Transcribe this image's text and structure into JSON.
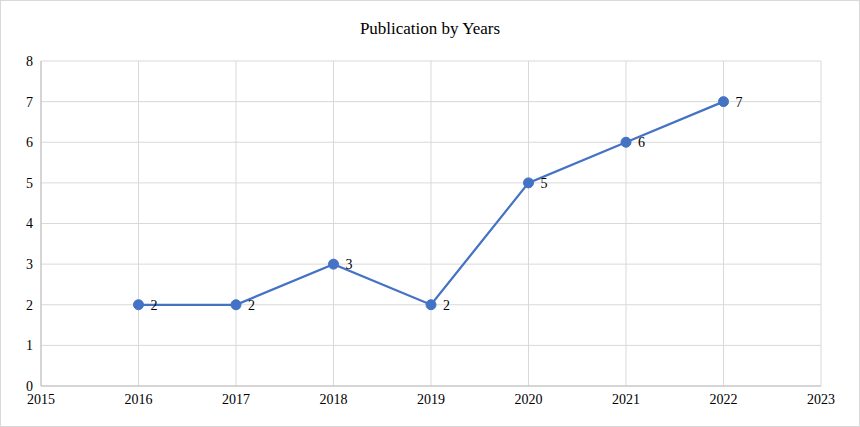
{
  "chart_data": {
    "type": "line",
    "title": "Publication by Years",
    "x": [
      2016,
      2017,
      2018,
      2019,
      2020,
      2021,
      2022
    ],
    "values": [
      2,
      2,
      3,
      2,
      5,
      6,
      7
    ],
    "color": "#4472c4",
    "marker": "circle",
    "xlim": [
      2015,
      2023
    ],
    "xticks": [
      2015,
      2016,
      2017,
      2018,
      2019,
      2020,
      2021,
      2022,
      2023
    ],
    "ylim": [
      0,
      8
    ],
    "yticks": [
      0,
      1,
      2,
      3,
      4,
      5,
      6,
      7,
      8
    ],
    "grid": true,
    "data_labels": true
  }
}
